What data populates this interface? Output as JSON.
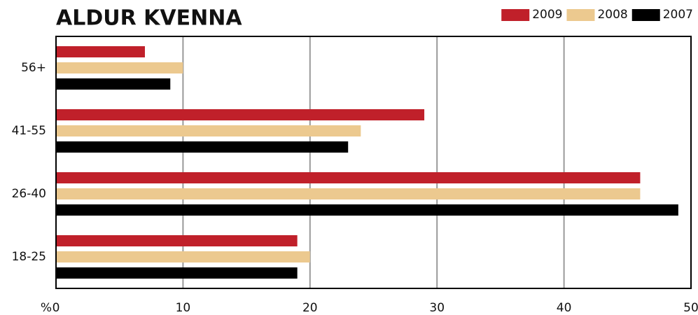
{
  "chart_data": {
    "type": "barh",
    "title": "ALDUR KVENNA",
    "xlabel": "%",
    "categories": [
      "56+",
      "41-55",
      "26-40",
      "18-25"
    ],
    "series": [
      {
        "name": "2009",
        "color": "#c0202a",
        "values": [
          7,
          29,
          46,
          19
        ]
      },
      {
        "name": "2008",
        "color": "#ecc98f",
        "values": [
          10,
          24,
          46,
          20
        ]
      },
      {
        "name": "2007",
        "color": "#000000",
        "values": [
          9,
          23,
          49,
          19
        ]
      }
    ],
    "xlim": [
      0,
      50
    ],
    "xticks": [
      0,
      10,
      20,
      30,
      40,
      50
    ],
    "grid": true,
    "legend": "top-right"
  }
}
